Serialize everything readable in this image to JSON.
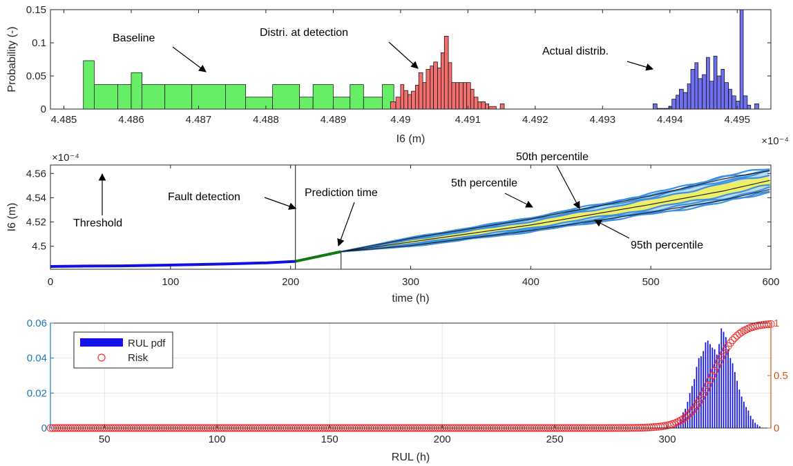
{
  "chart_data": [
    {
      "type": "histogram",
      "xlabel": "I6 (m)",
      "ylabel": "Probability (-)",
      "x_exponent": "×10⁻⁴",
      "xlim": [
        4.4848,
        4.4955
      ],
      "ylim": [
        0,
        0.15
      ],
      "xticks": [
        "4.485",
        "4.486",
        "4.487",
        "4.488",
        "4.489",
        "4.49",
        "4.491",
        "4.492",
        "4.493",
        "4.494",
        "4.495"
      ],
      "yticks": [
        "0",
        "0.05",
        "0.1",
        "0.15"
      ],
      "annotations": {
        "baseline": "Baseline",
        "detection": "Distri. at detection",
        "actual": "Actual distrib."
      },
      "series": [
        {
          "role": "baseline",
          "color": "#66ee66",
          "bins": [
            [
              4.48529,
              4.48545,
              0.073
            ],
            [
              4.48545,
              4.4858,
              0.037
            ],
            [
              4.4858,
              4.486,
              0.037
            ],
            [
              4.486,
              4.48616,
              0.055
            ],
            [
              4.48616,
              4.4865,
              0.037
            ],
            [
              4.4865,
              4.4869,
              0.037
            ],
            [
              4.4869,
              4.4874,
              0.037
            ],
            [
              4.4874,
              4.4877,
              0.037
            ],
            [
              4.4877,
              4.4881,
              0.018
            ],
            [
              4.4881,
              4.4885,
              0.037
            ],
            [
              4.4885,
              4.4887,
              0.018
            ],
            [
              4.4887,
              4.489,
              0.037
            ],
            [
              4.489,
              4.48925,
              0.018
            ],
            [
              4.48925,
              4.48945,
              0.037
            ],
            [
              4.48945,
              4.48973,
              0.018
            ],
            [
              4.48973,
              4.4899,
              0.037
            ]
          ]
        },
        {
          "role": "detection",
          "color": "#f07070",
          "bins": [
            [
              4.48985,
              4.48993,
              0.011
            ],
            [
              4.48993,
              4.49,
              0.018
            ],
            [
              4.49,
              4.49005,
              0.037
            ],
            [
              4.49005,
              4.49011,
              0.028
            ],
            [
              4.49011,
              4.49016,
              0.022
            ],
            [
              4.49016,
              4.49022,
              0.027
            ],
            [
              4.49022,
              4.49027,
              0.036
            ],
            [
              4.49027,
              4.49033,
              0.055
            ],
            [
              4.49033,
              4.49038,
              0.04
            ],
            [
              4.49038,
              4.49044,
              0.06
            ],
            [
              4.49044,
              4.49049,
              0.065
            ],
            [
              4.49049,
              4.49055,
              0.071
            ],
            [
              4.49055,
              4.4906,
              0.062
            ],
            [
              4.4906,
              4.49065,
              0.085
            ],
            [
              4.49065,
              4.49071,
              0.11
            ],
            [
              4.49071,
              4.49076,
              0.07
            ],
            [
              4.49076,
              4.49082,
              0.04
            ],
            [
              4.49082,
              4.49087,
              0.04
            ],
            [
              4.49087,
              4.49093,
              0.04
            ],
            [
              4.49093,
              4.49098,
              0.04
            ],
            [
              4.49098,
              4.49104,
              0.04
            ],
            [
              4.49104,
              4.49109,
              0.03
            ],
            [
              4.49109,
              4.49115,
              0.018
            ],
            [
              4.49115,
              4.4912,
              0.011
            ],
            [
              4.4912,
              4.49126,
              0.011
            ],
            [
              4.49126,
              4.49131,
              0.008
            ],
            [
              4.49131,
              4.49142,
              0.004
            ],
            [
              4.49148,
              4.49154,
              0.008
            ]
          ]
        },
        {
          "role": "actual",
          "color": "#7070ee",
          "bins": [
            [
              4.49375,
              4.49381,
              0.008
            ],
            [
              4.49381,
              4.49398,
              0.001
            ],
            [
              4.49398,
              4.49403,
              0.004
            ],
            [
              4.49403,
              4.49409,
              0.015
            ],
            [
              4.49409,
              4.49414,
              0.021
            ],
            [
              4.49414,
              4.4942,
              0.03
            ],
            [
              4.4942,
              4.49426,
              0.025
            ],
            [
              4.49426,
              4.49431,
              0.038
            ],
            [
              4.49431,
              4.49437,
              0.06
            ],
            [
              4.49437,
              4.49442,
              0.07
            ],
            [
              4.49442,
              4.49448,
              0.046
            ],
            [
              4.49448,
              4.49454,
              0.052
            ],
            [
              4.49454,
              4.49459,
              0.078
            ],
            [
              4.49459,
              4.49465,
              0.042
            ],
            [
              4.49465,
              4.4947,
              0.08
            ],
            [
              4.4947,
              4.49476,
              0.05
            ],
            [
              4.49476,
              4.49481,
              0.06
            ],
            [
              4.49481,
              4.49487,
              0.04
            ],
            [
              4.49487,
              4.49492,
              0.03
            ],
            [
              4.49492,
              4.49498,
              0.02
            ],
            [
              4.49498,
              4.49504,
              0.012
            ],
            [
              4.49504,
              4.49509,
              0.15
            ],
            [
              4.49509,
              4.49515,
              0.02
            ],
            [
              4.49515,
              4.4952,
              0.006
            ],
            [
              4.49526,
              4.49532,
              0.008
            ]
          ]
        }
      ]
    },
    {
      "type": "line",
      "xlabel": "time (h)",
      "ylabel": "I6 (m)",
      "y_exponent": "×10⁻⁴",
      "xlim": [
        0,
        600
      ],
      "ylim": [
        4.481,
        4.567
      ],
      "xticks": [
        0,
        100,
        200,
        300,
        400,
        500,
        600
      ],
      "yticks": [
        4.5,
        4.52,
        4.54,
        4.56
      ],
      "ytick_labels": [
        "4.5",
        "4.52",
        "4.54",
        "4.56"
      ],
      "threshold": 4.5682,
      "fault_detection_time": 204,
      "prediction_time": 242,
      "annotations": {
        "threshold": "Threshold",
        "fault": "Fault detection",
        "prediction": "Prediction time",
        "p5": "5th percentile",
        "p50": "50th percentile",
        "p95": "95th percentile"
      },
      "history": [
        [
          0,
          4.4833
        ],
        [
          30,
          4.4836
        ],
        [
          60,
          4.4838
        ],
        [
          90,
          4.4843
        ],
        [
          120,
          4.4848
        ],
        [
          150,
          4.4855
        ],
        [
          180,
          4.4863
        ],
        [
          204,
          4.4875
        ]
      ],
      "prediction_segment": [
        [
          204,
          4.4875
        ],
        [
          242,
          4.4955
        ]
      ],
      "median": [
        [
          242,
          4.4955
        ],
        [
          300,
          4.5035
        ],
        [
          400,
          4.5175
        ],
        [
          500,
          4.5345
        ],
        [
          560,
          4.5455
        ],
        [
          600,
          4.5545
        ]
      ],
      "p5": [
        [
          242,
          4.4955
        ],
        [
          300,
          4.5065
        ],
        [
          400,
          4.5225
        ],
        [
          500,
          4.5415
        ],
        [
          560,
          4.5555
        ],
        [
          600,
          4.5625
        ]
      ],
      "p95": [
        [
          242,
          4.4955
        ],
        [
          300,
          4.5005
        ],
        [
          400,
          4.513
        ],
        [
          500,
          4.528
        ],
        [
          560,
          4.538
        ],
        [
          600,
          4.547
        ]
      ]
    },
    {
      "type": "bar+scatter",
      "xlabel": "RUL (h)",
      "xlim": [
        26,
        346
      ],
      "xticks": [
        50,
        100,
        150,
        200,
        250,
        300
      ],
      "left_ylim": [
        0,
        0.06
      ],
      "left_yticks": [
        "0",
        "0.02",
        "0.04",
        "0.06"
      ],
      "right_ylim": [
        0,
        1
      ],
      "right_yticks": [
        "0",
        "0.5",
        "1"
      ],
      "legend": [
        "RUL pdf",
        "Risk"
      ],
      "rul_pdf": [
        [
          303,
          0.001
        ],
        [
          304,
          0.002
        ],
        [
          305,
          0.003
        ],
        [
          306,
          0.005
        ],
        [
          307,
          0.009
        ],
        [
          308,
          0.011
        ],
        [
          309,
          0.015
        ],
        [
          310,
          0.02
        ],
        [
          311,
          0.024
        ],
        [
          312,
          0.028
        ],
        [
          313,
          0.035
        ],
        [
          314,
          0.04
        ],
        [
          315,
          0.041
        ],
        [
          316,
          0.044
        ],
        [
          317,
          0.049
        ],
        [
          318,
          0.05
        ],
        [
          319,
          0.048
        ],
        [
          320,
          0.046
        ],
        [
          321,
          0.045
        ],
        [
          322,
          0.042
        ],
        [
          323,
          0.048
        ],
        [
          324,
          0.057
        ],
        [
          325,
          0.055
        ],
        [
          326,
          0.052
        ],
        [
          327,
          0.045
        ],
        [
          328,
          0.04
        ],
        [
          329,
          0.037
        ],
        [
          330,
          0.032
        ],
        [
          331,
          0.027
        ],
        [
          332,
          0.022
        ],
        [
          333,
          0.018
        ],
        [
          334,
          0.015
        ],
        [
          335,
          0.012
        ],
        [
          336,
          0.01
        ],
        [
          337,
          0.007
        ],
        [
          338,
          0.005
        ],
        [
          339,
          0.003
        ],
        [
          340,
          0.002
        ],
        [
          341,
          0.001
        ]
      ],
      "risk_logistic": {
        "midpoint": 320,
        "scale": 5.5
      }
    }
  ]
}
